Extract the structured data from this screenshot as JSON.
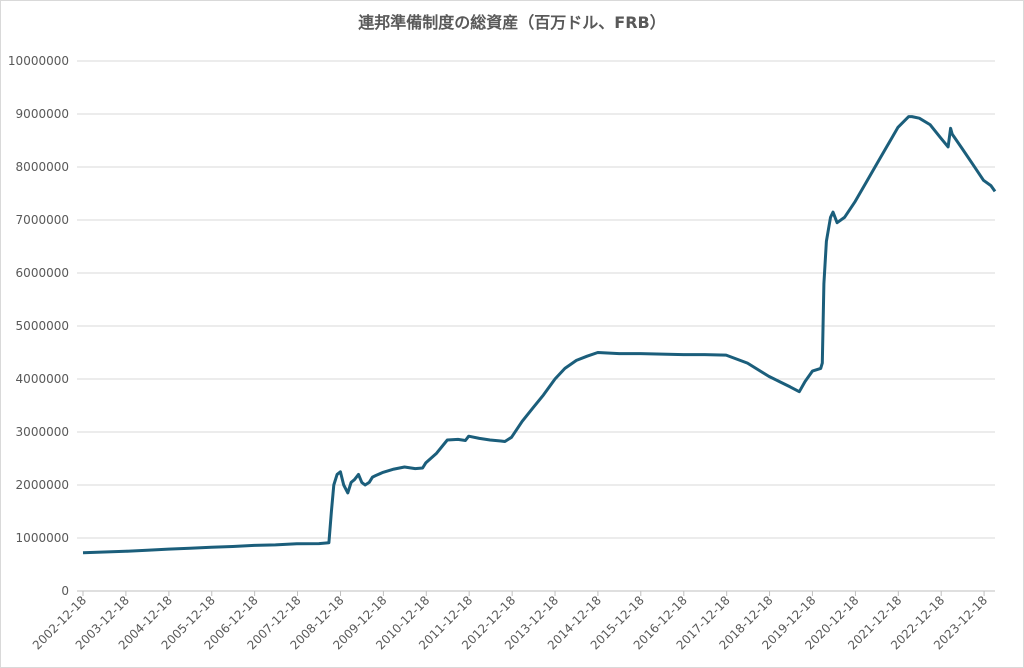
{
  "chart_data": {
    "type": "line",
    "title": "連邦準備制度の総資産（百万ドル、FRB）",
    "x": [
      "2002-12-18",
      "2003-06-18",
      "2003-12-17",
      "2004-06-16",
      "2004-12-15",
      "2005-06-15",
      "2005-12-14",
      "2006-06-14",
      "2006-12-13",
      "2007-06-13",
      "2007-12-12",
      "2008-06-18",
      "2008-09-10",
      "2008-10-01",
      "2008-10-22",
      "2008-11-19",
      "2008-12-17",
      "2009-01-14",
      "2009-02-18",
      "2009-03-18",
      "2009-04-15",
      "2009-05-20",
      "2009-06-17",
      "2009-07-15",
      "2009-08-19",
      "2009-09-16",
      "2009-10-14",
      "2009-12-16",
      "2010-03-17",
      "2010-06-16",
      "2010-09-15",
      "2010-11-17",
      "2010-12-15",
      "2011-03-16",
      "2011-06-15",
      "2011-09-14",
      "2011-11-16",
      "2011-12-14",
      "2012-03-14",
      "2012-06-13",
      "2012-09-12",
      "2012-10-17",
      "2012-12-12",
      "2013-03-13",
      "2013-06-12",
      "2013-09-11",
      "2013-12-18",
      "2014-03-12",
      "2014-06-18",
      "2014-09-17",
      "2014-12-17",
      "2015-06-17",
      "2015-12-16",
      "2016-06-15",
      "2016-12-14",
      "2017-06-14",
      "2017-12-13",
      "2018-06-13",
      "2018-12-12",
      "2019-03-13",
      "2019-06-12",
      "2019-08-28",
      "2019-10-16",
      "2019-12-18",
      "2020-02-26",
      "2020-03-11",
      "2020-03-25",
      "2020-04-15",
      "2020-05-20",
      "2020-06-10",
      "2020-07-15",
      "2020-09-16",
      "2020-12-16",
      "2021-03-17",
      "2021-06-16",
      "2021-09-15",
      "2021-12-15",
      "2022-03-16",
      "2022-04-13",
      "2022-06-15",
      "2022-09-14",
      "2022-12-14",
      "2023-02-15",
      "2023-03-08",
      "2023-03-22",
      "2023-06-14",
      "2023-09-13",
      "2023-12-13",
      "2024-02-14",
      "2024-03-20"
    ],
    "series": [
      {
        "name": "総資産",
        "color": "#1b5e7b",
        "values": [
          720000,
          735000,
          750000,
          770000,
          790000,
          805000,
          825000,
          840000,
          860000,
          870000,
          890000,
          895000,
          910000,
          1500000,
          2000000,
          2200000,
          2250000,
          2000000,
          1850000,
          2050000,
          2100000,
          2200000,
          2050000,
          2000000,
          2050000,
          2150000,
          2180000,
          2240000,
          2300000,
          2340000,
          2310000,
          2320000,
          2420000,
          2600000,
          2850000,
          2860000,
          2840000,
          2920000,
          2880000,
          2850000,
          2830000,
          2820000,
          2900000,
          3200000,
          3450000,
          3700000,
          4000000,
          4200000,
          4350000,
          4430000,
          4500000,
          4480000,
          4480000,
          4470000,
          4460000,
          4460000,
          4450000,
          4300000,
          4050000,
          3950000,
          3850000,
          3760000,
          3950000,
          4150000,
          4200000,
          4300000,
          5800000,
          6600000,
          7050000,
          7150000,
          6950000,
          7050000,
          7350000,
          7700000,
          8050000,
          8400000,
          8750000,
          8950000,
          8950000,
          8920000,
          8800000,
          8550000,
          8380000,
          8730000,
          8620000,
          8350000,
          8050000,
          7750000,
          7650000,
          7540000
        ]
      }
    ],
    "xlim": [
      "2002-12-18",
      "2024-03-20"
    ],
    "xticks": [
      "2002-12-18",
      "2003-12-18",
      "2004-12-18",
      "2005-12-18",
      "2006-12-18",
      "2007-12-18",
      "2008-12-18",
      "2009-12-18",
      "2010-12-18",
      "2011-12-18",
      "2012-12-18",
      "2013-12-18",
      "2014-12-18",
      "2015-12-18",
      "2016-12-18",
      "2017-12-18",
      "2018-12-18",
      "2019-12-18",
      "2020-12-18",
      "2021-12-18",
      "2022-12-18",
      "2023-12-18"
    ],
    "ylim": [
      0,
      10000000
    ],
    "yticks": [
      0,
      1000000,
      2000000,
      3000000,
      4000000,
      5000000,
      6000000,
      7000000,
      8000000,
      9000000,
      10000000
    ],
    "grid": true
  }
}
